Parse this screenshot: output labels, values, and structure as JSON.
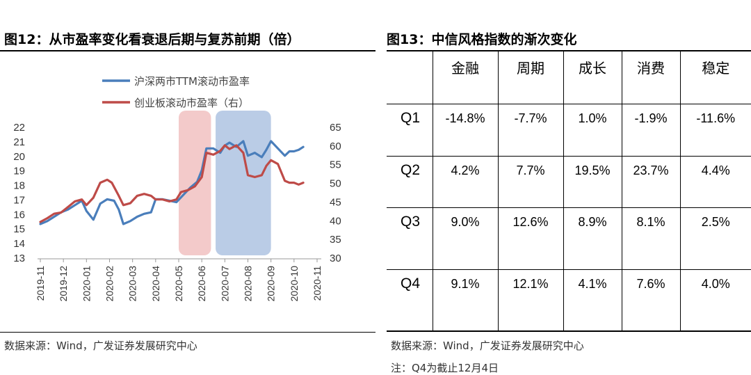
{
  "left": {
    "title": "图12：从市盈率变化看衰退后期与复苏前期（倍）",
    "source": "数据来源：Wind，广发证券发展研究中心"
  },
  "right": {
    "title": "图13：中信风格指数的渐次变化",
    "source": "数据来源：Wind，广发证券发展研究中心",
    "note": "注：Q4为截止12月4日"
  },
  "colors": {
    "blue": "#4a7ebb",
    "red": "#be4b48",
    "shade_red": "#f2c4c4",
    "shade_blue": "#b3c7e3"
  },
  "chart_data": [
    {
      "type": "line",
      "title": "从市盈率变化看衰退后期与复苏前期（倍）",
      "x_ticks": [
        "2019-11",
        "2019-12",
        "2020-01",
        "2020-02",
        "2020-03",
        "2020-04",
        "2020-05",
        "2020-06",
        "2020-07",
        "2020-08",
        "2020-09",
        "2020-10",
        "2020-11"
      ],
      "left_axis": {
        "ylim": [
          13,
          22
        ],
        "ticks": [
          13,
          14,
          15,
          16,
          17,
          18,
          19,
          20,
          21,
          22
        ]
      },
      "right_axis": {
        "ylim": [
          30,
          65
        ],
        "ticks": [
          30,
          35,
          40,
          45,
          50,
          55,
          60,
          65
        ]
      },
      "legend": [
        "沪深两市TTM滚动市盈率",
        "创业板滚动市盈率（右）"
      ],
      "shaded_ranges": [
        {
          "from": 6.0,
          "to": 7.4,
          "color": "red"
        },
        {
          "from": 7.6,
          "to": 10.0,
          "color": "blue"
        }
      ],
      "series": [
        {
          "name": "沪深两市TTM滚动市盈率",
          "axis": "left",
          "color": "blue",
          "points": [
            [
              0,
              15.3
            ],
            [
              0.3,
              15.5
            ],
            [
              0.6,
              15.8
            ],
            [
              0.9,
              16.1
            ],
            [
              1.2,
              16.3
            ],
            [
              1.5,
              16.6
            ],
            [
              1.8,
              16.9
            ],
            [
              2.0,
              16.2
            ],
            [
              2.3,
              15.6
            ],
            [
              2.6,
              16.7
            ],
            [
              2.9,
              17.0
            ],
            [
              3.2,
              16.9
            ],
            [
              3.4,
              16.3
            ],
            [
              3.6,
              15.3
            ],
            [
              3.9,
              15.5
            ],
            [
              4.2,
              15.8
            ],
            [
              4.5,
              16.0
            ],
            [
              4.8,
              16.1
            ],
            [
              5.0,
              17.0
            ],
            [
              5.3,
              17.0
            ],
            [
              5.6,
              16.9
            ],
            [
              5.9,
              16.8
            ],
            [
              6.2,
              17.3
            ],
            [
              6.5,
              17.8
            ],
            [
              6.8,
              18.2
            ],
            [
              7.0,
              19.0
            ],
            [
              7.2,
              20.5
            ],
            [
              7.5,
              20.5
            ],
            [
              7.8,
              20.2
            ],
            [
              8.0,
              20.7
            ],
            [
              8.2,
              20.9
            ],
            [
              8.5,
              20.6
            ],
            [
              8.8,
              21.0
            ],
            [
              9.0,
              20.0
            ],
            [
              9.3,
              20.2
            ],
            [
              9.6,
              19.9
            ],
            [
              9.8,
              20.4
            ],
            [
              10.0,
              21.0
            ],
            [
              10.3,
              20.5
            ],
            [
              10.6,
              20.0
            ],
            [
              10.8,
              20.3
            ],
            [
              11.0,
              20.3
            ],
            [
              11.2,
              20.4
            ],
            [
              11.4,
              20.6
            ]
          ]
        },
        {
          "name": "创业板滚动市盈率（右）",
          "axis": "right",
          "color": "red",
          "points": [
            [
              0,
              39.5
            ],
            [
              0.3,
              40.5
            ],
            [
              0.6,
              41.7
            ],
            [
              0.9,
              42.0
            ],
            [
              1.2,
              43.5
            ],
            [
              1.5,
              45.0
            ],
            [
              1.8,
              45.5
            ],
            [
              2.0,
              44.0
            ],
            [
              2.3,
              46.0
            ],
            [
              2.6,
              50.0
            ],
            [
              2.9,
              50.8
            ],
            [
              3.1,
              50.0
            ],
            [
              3.4,
              46.5
            ],
            [
              3.6,
              44.0
            ],
            [
              3.9,
              44.5
            ],
            [
              4.2,
              46.5
            ],
            [
              4.5,
              47.0
            ],
            [
              4.8,
              46.5
            ],
            [
              5.0,
              45.5
            ],
            [
              5.3,
              45.5
            ],
            [
              5.6,
              45.0
            ],
            [
              5.9,
              45.5
            ],
            [
              6.1,
              47.5
            ],
            [
              6.4,
              48.0
            ],
            [
              6.7,
              49.0
            ],
            [
              7.0,
              51.5
            ],
            [
              7.2,
              58.0
            ],
            [
              7.5,
              57.5
            ],
            [
              7.8,
              58.5
            ],
            [
              8.0,
              60.0
            ],
            [
              8.2,
              59.0
            ],
            [
              8.5,
              60.0
            ],
            [
              8.8,
              58.0
            ],
            [
              9.0,
              52.0
            ],
            [
              9.3,
              51.5
            ],
            [
              9.6,
              52.0
            ],
            [
              9.8,
              54.5
            ],
            [
              10.0,
              56.0
            ],
            [
              10.3,
              55.0
            ],
            [
              10.6,
              50.5
            ],
            [
              10.8,
              50.0
            ],
            [
              11.0,
              50.0
            ],
            [
              11.2,
              49.5
            ],
            [
              11.4,
              50.0
            ]
          ]
        }
      ]
    },
    {
      "type": "table",
      "title": "中信风格指数的渐次变化",
      "columns": [
        "",
        "金融",
        "周期",
        "成长",
        "消费",
        "稳定"
      ],
      "rows": [
        [
          "Q1",
          "-14.8%",
          "-7.7%",
          "1.0%",
          "-1.9%",
          "-11.6%"
        ],
        [
          "Q2",
          "4.2%",
          "7.7%",
          "19.5%",
          "23.7%",
          "4.4%"
        ],
        [
          "Q3",
          "9.0%",
          "12.6%",
          "8.9%",
          "8.1%",
          "2.5%"
        ],
        [
          "Q4",
          "9.1%",
          "12.1%",
          "4.1%",
          "7.6%",
          "4.0%"
        ]
      ]
    }
  ]
}
